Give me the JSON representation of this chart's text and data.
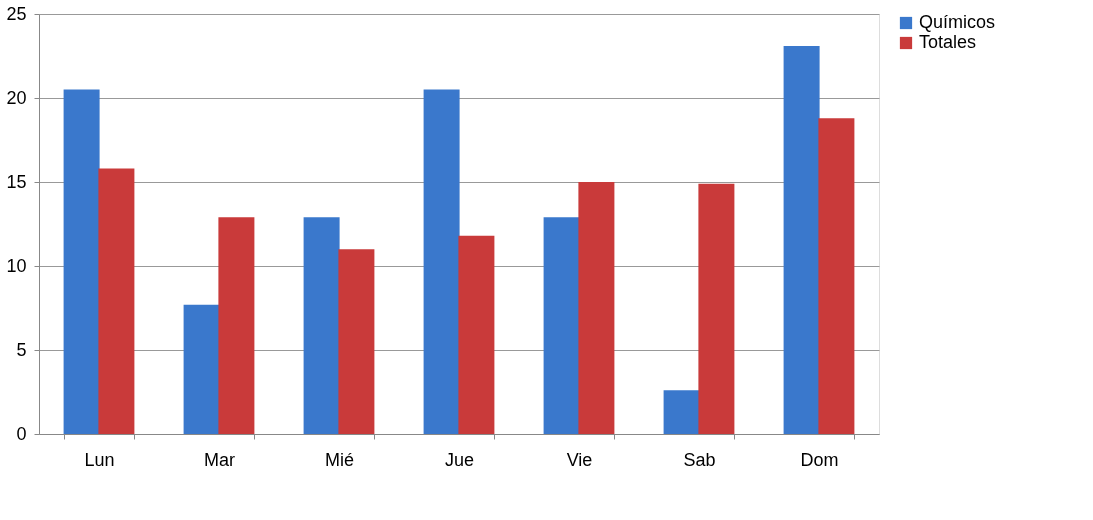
{
  "chart_data": {
    "type": "bar",
    "categories": [
      "Lun",
      "Mar",
      "Mié",
      "Jue",
      "Vie",
      "Sab",
      "Dom"
    ],
    "series": [
      {
        "name": "Químicos",
        "color": "#3a78cc",
        "values": [
          20.5,
          7.7,
          12.9,
          20.5,
          12.9,
          2.6,
          23.1
        ]
      },
      {
        "name": "Totales",
        "color": "#c93a3a",
        "values": [
          15.8,
          12.9,
          11.0,
          11.8,
          15.0,
          14.9,
          18.8
        ]
      }
    ],
    "ylim": [
      0,
      25
    ],
    "yticks": [
      0,
      5,
      10,
      15,
      20,
      25
    ],
    "grid": "y",
    "legend": "right"
  }
}
